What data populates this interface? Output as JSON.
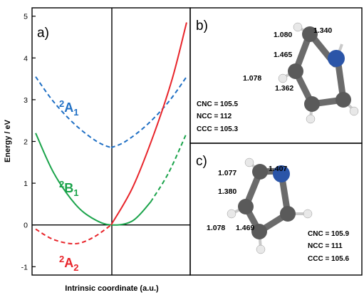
{
  "chart_data": {
    "type": "line",
    "xlabel": "Intrinsic coordinate (a.u.)",
    "ylabel": "Energy / eV",
    "ylim": [
      -1.2,
      5.2
    ],
    "yticks": [
      "-1",
      "0",
      "1",
      "2",
      "3",
      "4",
      "5"
    ],
    "xlim": [
      -1.1,
      1.1
    ],
    "grid": false,
    "series": [
      {
        "name": "²A₁",
        "color": "#1f6fc4",
        "style": "dashed",
        "x": [
          -1.05,
          -0.8,
          -0.5,
          -0.2,
          0,
          0.2,
          0.5,
          0.8,
          1.05
        ],
        "y": [
          3.55,
          2.95,
          2.4,
          2.0,
          1.85,
          2.0,
          2.4,
          2.95,
          3.55
        ]
      },
      {
        "name": "²B₁",
        "color": "#1aa34a",
        "style": "solid-then-dashed",
        "x": [
          -1.05,
          -0.8,
          -0.5,
          -0.25,
          0,
          0.3,
          0.55,
          0.8,
          1.05
        ],
        "y": [
          2.2,
          1.25,
          0.5,
          0.15,
          0.0,
          0.1,
          0.55,
          1.25,
          2.2
        ]
      },
      {
        "name": "²A₂",
        "color": "#e8242a",
        "style": "dashed-then-solid",
        "x": [
          -1.05,
          -0.8,
          -0.5,
          -0.25,
          0,
          0.3,
          0.6,
          0.85,
          1.05
        ],
        "y": [
          -0.1,
          -0.35,
          -0.45,
          -0.3,
          0.0,
          0.9,
          2.2,
          3.5,
          4.85
        ]
      }
    ],
    "annotations": [
      {
        "panel": "a)",
        "series_labels": [
          "²A₁",
          "²B₁",
          "²A₂"
        ]
      }
    ]
  },
  "panel_a_label": "a)",
  "panel_b": {
    "label": "b)",
    "bond_1": "1.080",
    "bond_2": "1.340",
    "bond_3": "1.465",
    "bond_4": "1.078",
    "bond_5": "1.362",
    "angle_1": "CNC = 105.5",
    "angle_2": "NCC = 112",
    "angle_3": "CCC = 105.3"
  },
  "panel_c": {
    "label": "c)",
    "bond_1": "1.077",
    "bond_2": "1.407",
    "bond_3": "1.380",
    "bond_4": "1.078",
    "bond_5": "1.469",
    "angle_1": "CNC = 105.9",
    "angle_2": "NCC = 111",
    "angle_3": "CCC = 105.6"
  },
  "colors": {
    "carbon": "#5a5a5a",
    "nitrogen": "#2b55a8",
    "hydrogen": "#e8e8e8"
  }
}
